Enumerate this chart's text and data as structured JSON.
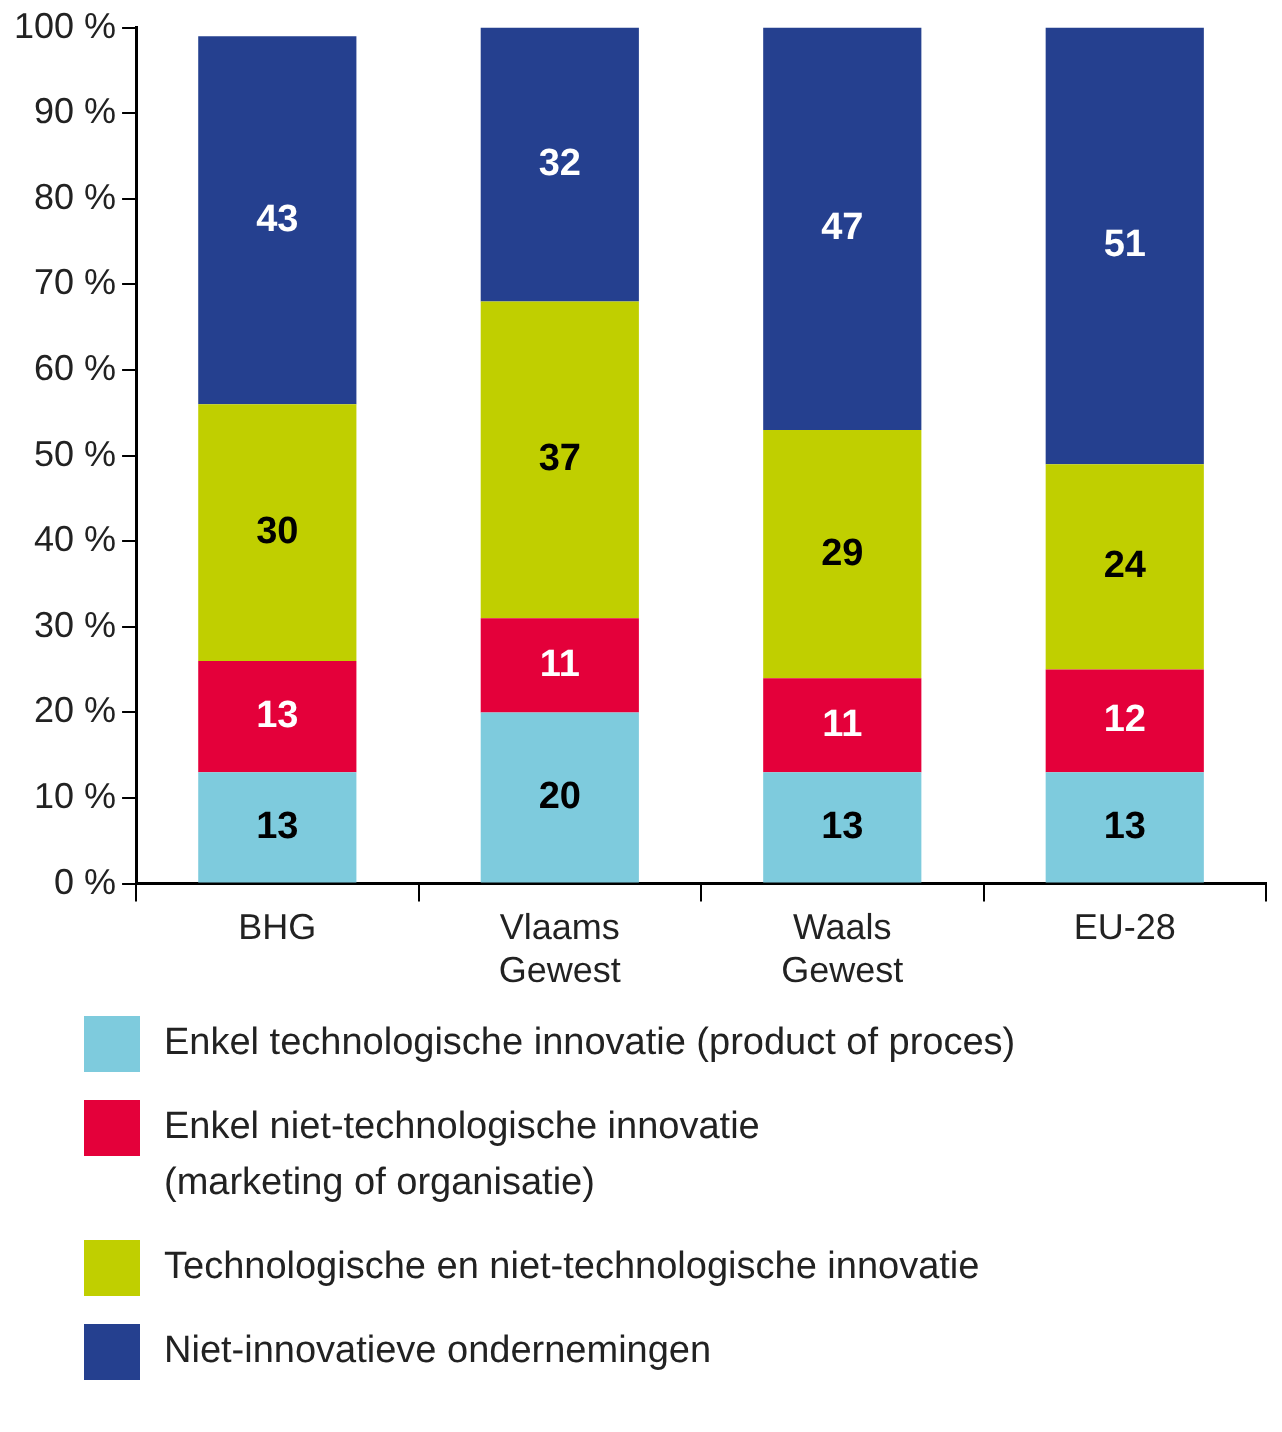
{
  "chart_data": {
    "type": "bar",
    "stacked": true,
    "data_labels": true,
    "grid": false,
    "legend": "bottom",
    "categories": [
      "BHG",
      "Vlaams\nGewest",
      "Waals\nGewest",
      "EU-28"
    ],
    "series": [
      {
        "name": "Enkel technologische innovatie (product of proces)",
        "color": "#7ecbdd",
        "values": [
          13,
          20,
          13,
          13
        ]
      },
      {
        "name": "Enkel niet-technologische innovatie\n(marketing of organisatie)",
        "color": "#e4003a",
        "values": [
          13,
          11,
          11,
          12
        ]
      },
      {
        "name": "Technologische en niet-technologische innovatie",
        "color": "#c0cf00",
        "values": [
          30,
          37,
          29,
          24
        ]
      },
      {
        "name": "Niet-innovatieve ondernemingen",
        "color": "#25408f",
        "values": [
          43,
          32,
          47,
          51
        ]
      }
    ],
    "ylim": [
      0,
      100
    ],
    "yticks": [
      {
        "value": 0,
        "label": "0 %"
      },
      {
        "value": 10,
        "label": "10 %"
      },
      {
        "value": 20,
        "label": "20 %"
      },
      {
        "value": 30,
        "label": "30 %"
      },
      {
        "value": 40,
        "label": "40 %"
      },
      {
        "value": 50,
        "label": "50 %"
      },
      {
        "value": 60,
        "label": "60 %"
      },
      {
        "value": 70,
        "label": "70 %"
      },
      {
        "value": 80,
        "label": "80 %"
      },
      {
        "value": 90,
        "label": "90 %"
      },
      {
        "value": 100,
        "label": "100 %"
      }
    ]
  }
}
